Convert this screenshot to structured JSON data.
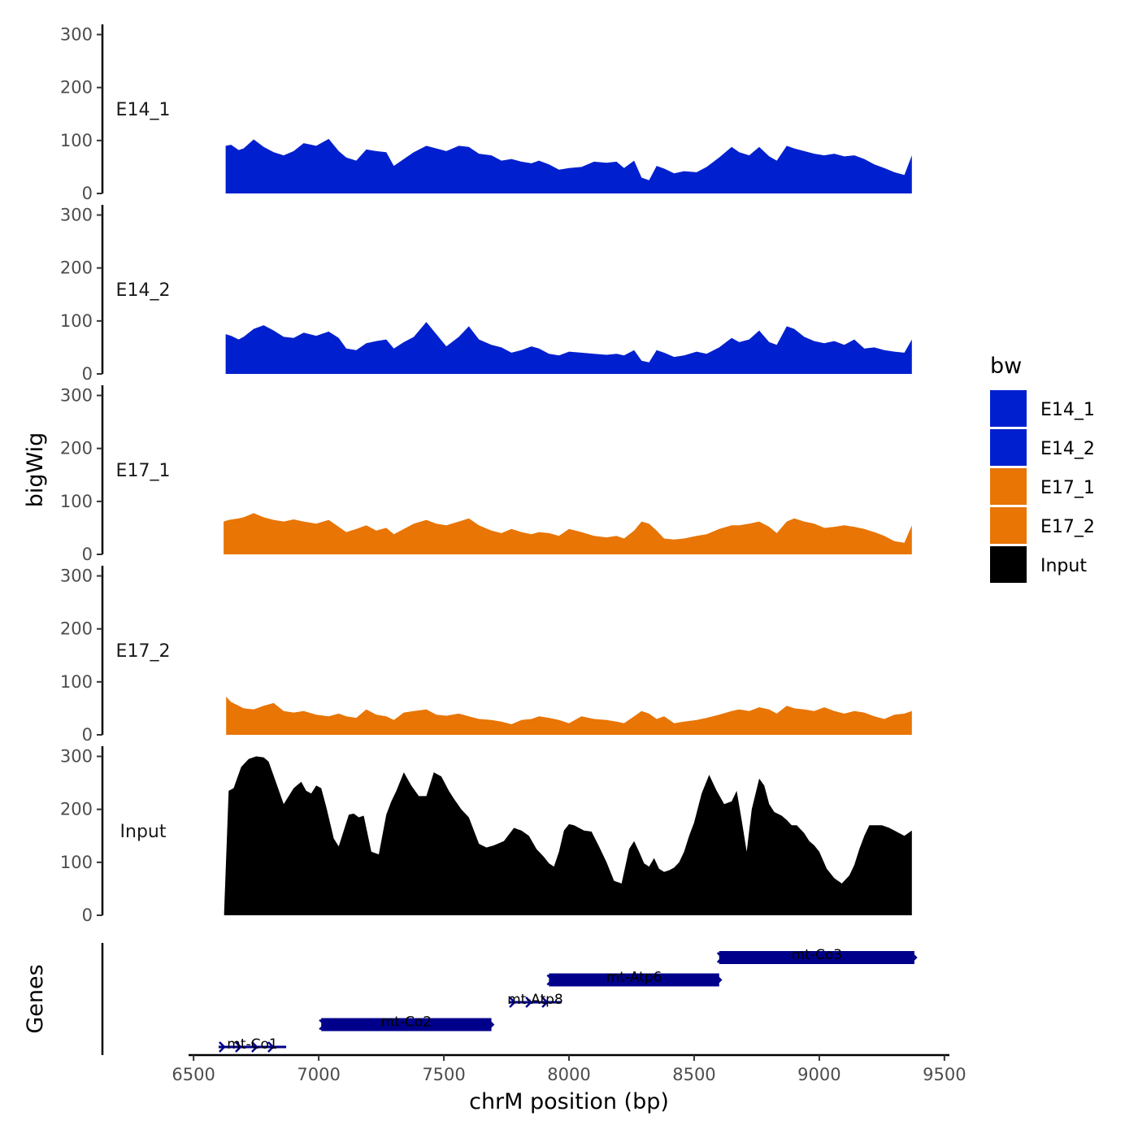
{
  "chart_data": {
    "type": "area",
    "title": "",
    "xlabel": "chrM position (bp)",
    "xlim": [
      6480,
      9520
    ],
    "x_ticks": [
      6500,
      7000,
      7500,
      8000,
      8500,
      9000,
      9500
    ],
    "x_tick_labels": [
      "6500",
      "7000",
      "7500",
      "8000",
      "8500",
      "9000",
      "9500"
    ],
    "ylabel": "bigWig",
    "ylim": [
      0,
      310
    ],
    "y_ticks": [
      0,
      100,
      200,
      300
    ],
    "y_tick_labels": [
      "0",
      "100",
      "200",
      "300"
    ],
    "gene_track_label": "Genes",
    "legend": {
      "title": "bw",
      "position": "right",
      "entries": [
        {
          "label": "E14_1",
          "color": "#0020CF"
        },
        {
          "label": "E14_2",
          "color": "#0020CF"
        },
        {
          "label": "E17_1",
          "color": "#E87504"
        },
        {
          "label": "E17_2",
          "color": "#E87504"
        },
        {
          "label": "Input",
          "color": "#000000"
        }
      ]
    },
    "series": [
      {
        "name": "E14_1",
        "color": "#0020CF",
        "x": [
          6628,
          6650,
          6680,
          6700,
          6740,
          6780,
          6820,
          6860,
          6900,
          6940,
          6990,
          7040,
          7080,
          7110,
          7150,
          7190,
          7230,
          7270,
          7300,
          7340,
          7380,
          7430,
          7470,
          7510,
          7560,
          7600,
          7640,
          7690,
          7730,
          7770,
          7810,
          7850,
          7880,
          7920,
          7960,
          8000,
          8050,
          8100,
          8150,
          8190,
          8220,
          8260,
          8290,
          8320,
          8350,
          8380,
          8420,
          8460,
          8510,
          8550,
          8600,
          8650,
          8680,
          8720,
          8760,
          8800,
          8830,
          8870,
          8900,
          8940,
          8980,
          9020,
          9060,
          9100,
          9140,
          9180,
          9220,
          9260,
          9300,
          9340,
          9370
        ],
        "y": [
          90,
          92,
          82,
          85,
          102,
          88,
          78,
          72,
          80,
          95,
          90,
          103,
          80,
          68,
          62,
          83,
          80,
          78,
          52,
          65,
          78,
          90,
          85,
          80,
          90,
          88,
          75,
          72,
          62,
          65,
          60,
          57,
          62,
          55,
          45,
          48,
          50,
          60,
          58,
          60,
          48,
          62,
          30,
          25,
          52,
          47,
          38,
          42,
          40,
          50,
          68,
          88,
          78,
          72,
          88,
          70,
          62,
          90,
          85,
          80,
          75,
          72,
          75,
          70,
          72,
          65,
          55,
          48,
          40,
          35,
          72
        ]
      },
      {
        "name": "E14_2",
        "color": "#0020CF",
        "x": [
          6628,
          6650,
          6680,
          6700,
          6740,
          6780,
          6820,
          6860,
          6900,
          6940,
          6990,
          7040,
          7080,
          7110,
          7150,
          7190,
          7230,
          7270,
          7300,
          7340,
          7380,
          7430,
          7470,
          7510,
          7560,
          7600,
          7640,
          7690,
          7730,
          7770,
          7810,
          7850,
          7880,
          7920,
          7960,
          8000,
          8050,
          8100,
          8150,
          8190,
          8220,
          8260,
          8290,
          8320,
          8350,
          8380,
          8420,
          8460,
          8510,
          8550,
          8600,
          8650,
          8680,
          8720,
          8760,
          8800,
          8830,
          8870,
          8900,
          8940,
          8980,
          9020,
          9060,
          9100,
          9140,
          9180,
          9220,
          9260,
          9300,
          9340,
          9370
        ],
        "y": [
          75,
          72,
          65,
          70,
          85,
          92,
          82,
          70,
          68,
          78,
          72,
          80,
          68,
          48,
          45,
          58,
          62,
          65,
          48,
          60,
          70,
          98,
          75,
          52,
          70,
          90,
          65,
          55,
          50,
          40,
          45,
          52,
          48,
          38,
          35,
          42,
          40,
          38,
          36,
          38,
          35,
          45,
          25,
          22,
          45,
          40,
          32,
          35,
          42,
          38,
          50,
          68,
          60,
          65,
          82,
          60,
          55,
          90,
          85,
          70,
          62,
          58,
          62,
          55,
          65,
          48,
          50,
          45,
          42,
          40,
          65
        ]
      },
      {
        "name": "E17_1",
        "color": "#E87504",
        "x": [
          6620,
          6640,
          6680,
          6700,
          6740,
          6780,
          6820,
          6860,
          6900,
          6940,
          6990,
          7040,
          7080,
          7110,
          7150,
          7190,
          7230,
          7270,
          7300,
          7340,
          7380,
          7430,
          7470,
          7510,
          7560,
          7600,
          7640,
          7690,
          7730,
          7770,
          7810,
          7850,
          7880,
          7920,
          7960,
          8000,
          8050,
          8100,
          8150,
          8190,
          8220,
          8260,
          8290,
          8320,
          8350,
          8380,
          8420,
          8460,
          8510,
          8550,
          8600,
          8650,
          8680,
          8720,
          8760,
          8800,
          8830,
          8870,
          8900,
          8940,
          8980,
          9020,
          9060,
          9100,
          9140,
          9180,
          9220,
          9260,
          9300,
          9340,
          9370
        ],
        "y": [
          62,
          65,
          68,
          70,
          78,
          70,
          65,
          62,
          66,
          62,
          58,
          65,
          52,
          42,
          48,
          55,
          45,
          50,
          38,
          48,
          58,
          65,
          58,
          55,
          62,
          68,
          55,
          45,
          40,
          48,
          42,
          38,
          42,
          40,
          35,
          48,
          42,
          35,
          32,
          35,
          30,
          45,
          62,
          58,
          45,
          30,
          28,
          30,
          35,
          38,
          48,
          55,
          55,
          58,
          62,
          52,
          40,
          62,
          68,
          62,
          58,
          50,
          52,
          55,
          52,
          48,
          42,
          35,
          25,
          22,
          55
        ]
      },
      {
        "name": "E17_2",
        "color": "#E87504",
        "x": [
          6630,
          6650,
          6680,
          6700,
          6740,
          6780,
          6820,
          6860,
          6900,
          6940,
          6990,
          7040,
          7080,
          7110,
          7150,
          7190,
          7230,
          7270,
          7300,
          7340,
          7380,
          7430,
          7470,
          7510,
          7560,
          7600,
          7640,
          7690,
          7730,
          7770,
          7810,
          7850,
          7880,
          7920,
          7960,
          8000,
          8050,
          8100,
          8150,
          8190,
          8220,
          8260,
          8290,
          8320,
          8350,
          8380,
          8420,
          8460,
          8510,
          8550,
          8600,
          8650,
          8680,
          8720,
          8760,
          8800,
          8830,
          8870,
          8900,
          8940,
          8980,
          9020,
          9060,
          9100,
          9140,
          9180,
          9220,
          9260,
          9300,
          9340,
          9370
        ],
        "y": [
          72,
          62,
          55,
          50,
          48,
          55,
          60,
          45,
          42,
          45,
          38,
          35,
          40,
          35,
          32,
          48,
          38,
          35,
          28,
          42,
          45,
          48,
          38,
          36,
          40,
          35,
          30,
          28,
          25,
          20,
          28,
          30,
          35,
          32,
          28,
          22,
          35,
          30,
          28,
          25,
          22,
          35,
          45,
          40,
          30,
          35,
          22,
          25,
          28,
          32,
          38,
          45,
          48,
          45,
          52,
          48,
          40,
          55,
          50,
          48,
          45,
          52,
          45,
          40,
          45,
          42,
          35,
          30,
          38,
          40,
          45
        ]
      },
      {
        "name": "Input",
        "color": "#000000",
        "x": [
          6622,
          6640,
          6660,
          6690,
          6720,
          6750,
          6780,
          6800,
          6830,
          6860,
          6880,
          6900,
          6930,
          6950,
          6970,
          6990,
          7010,
          7030,
          7060,
          7080,
          7100,
          7120,
          7140,
          7160,
          7180,
          7210,
          7240,
          7270,
          7290,
          7310,
          7340,
          7370,
          7400,
          7430,
          7460,
          7490,
          7520,
          7540,
          7570,
          7600,
          7640,
          7670,
          7700,
          7740,
          7780,
          7810,
          7840,
          7870,
          7900,
          7920,
          7940,
          7960,
          7980,
          8000,
          8020,
          8040,
          8060,
          8090,
          8120,
          8150,
          8180,
          8210,
          8240,
          8260,
          8280,
          8300,
          8320,
          8340,
          8360,
          8380,
          8400,
          8420,
          8440,
          8460,
          8480,
          8500,
          8530,
          8560,
          8590,
          8620,
          8650,
          8670,
          8690,
          8710,
          8730,
          8760,
          8780,
          8800,
          8820,
          8850,
          8870,
          8890,
          8910,
          8940,
          8960,
          8980,
          9000,
          9030,
          9060,
          9090,
          9120,
          9140,
          9160,
          9180,
          9200,
          9220,
          9250,
          9280,
          9300,
          9320,
          9340,
          9370
        ],
        "y": [
          5,
          235,
          240,
          280,
          295,
          300,
          298,
          290,
          250,
          210,
          225,
          240,
          252,
          235,
          230,
          245,
          240,
          205,
          145,
          130,
          160,
          190,
          192,
          185,
          188,
          120,
          115,
          190,
          215,
          235,
          270,
          245,
          225,
          225,
          270,
          262,
          235,
          220,
          200,
          185,
          135,
          128,
          132,
          140,
          165,
          160,
          150,
          125,
          110,
          98,
          92,
          120,
          160,
          172,
          170,
          165,
          160,
          158,
          130,
          100,
          65,
          60,
          125,
          140,
          120,
          98,
          92,
          108,
          88,
          82,
          85,
          90,
          100,
          120,
          150,
          175,
          230,
          265,
          235,
          210,
          215,
          235,
          180,
          120,
          200,
          258,
          245,
          210,
          195,
          188,
          180,
          170,
          170,
          155,
          140,
          132,
          120,
          88,
          70,
          60,
          75,
          95,
          125,
          150,
          170,
          170,
          170,
          165,
          160,
          155,
          150,
          160
        ]
      }
    ],
    "genes": [
      {
        "name": "mt-Co1",
        "start": 6600,
        "end": 6870,
        "strand": "+",
        "row": 0
      },
      {
        "name": "mt-Co2",
        "start": 7010,
        "end": 7690,
        "strand": "+",
        "row": 1
      },
      {
        "name": "mt-Atp8",
        "start": 7760,
        "end": 7970,
        "strand": "+",
        "row": 2
      },
      {
        "name": "mt-Atp6",
        "start": 7920,
        "end": 8600,
        "strand": "+",
        "row": 3
      },
      {
        "name": "mt-Co3",
        "start": 8600,
        "end": 9380,
        "strand": "+",
        "row": 4
      }
    ],
    "gene_color": "#00008B"
  }
}
